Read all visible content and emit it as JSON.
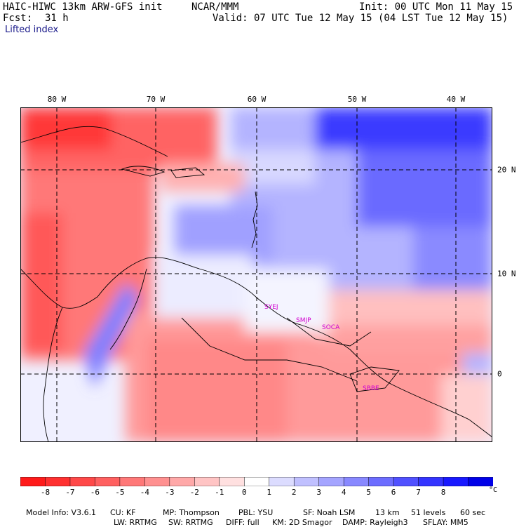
{
  "header": {
    "model": "HAIC-HIWC 13km ARW-GFS init",
    "org": "NCAR/MMM",
    "init": "Init: 00 UTC Mon 11 May 15",
    "fcst_label": "Fcst:",
    "fcst_value": "31 h",
    "valid": "Valid: 07 UTC Tue 12 May 15 (04 LST Tue 12 May 15)",
    "field": "Lifted index"
  },
  "axes": {
    "lon_labels": [
      "80 W",
      "70 W",
      "60 W",
      "50 W",
      "40 W"
    ],
    "lat_labels": [
      "20 N",
      "10 N",
      "0"
    ]
  },
  "stations": [
    "SYEJ",
    "SMJP",
    "SOCA",
    "SBBE"
  ],
  "colorbar": {
    "labels": [
      "-8",
      "-7",
      "-6",
      "-5",
      "-4",
      "-3",
      "-2",
      "-1",
      "0",
      "1",
      "2",
      "3",
      "4",
      "5",
      "6",
      "7",
      "8"
    ],
    "unit": "°C",
    "colors": [
      "#ff1a1a",
      "#ff3030",
      "#ff4848",
      "#ff6060",
      "#ff7878",
      "#ff9090",
      "#ffa8a8",
      "#ffc4c4",
      "#ffe0e0",
      "#ffffff",
      "#dcdcff",
      "#c0c0ff",
      "#a4a4ff",
      "#8888ff",
      "#6c6cff",
      "#5050ff",
      "#3434ff",
      "#1818ff",
      "#0000e8"
    ]
  },
  "footer": {
    "row1": [
      "Model Info: V3.6.1",
      "CU: KF",
      "MP: Thompson",
      "PBL: YSU",
      "SF: Noah LSM",
      "13 km",
      "51 levels",
      "60 sec"
    ],
    "row2": [
      "LW: RRTMG",
      "SW: RRTMG",
      "DIFF: full",
      "KM: 2D Smagor",
      "DAMP: Rayleigh3",
      "SFLAY: MM5"
    ]
  }
}
